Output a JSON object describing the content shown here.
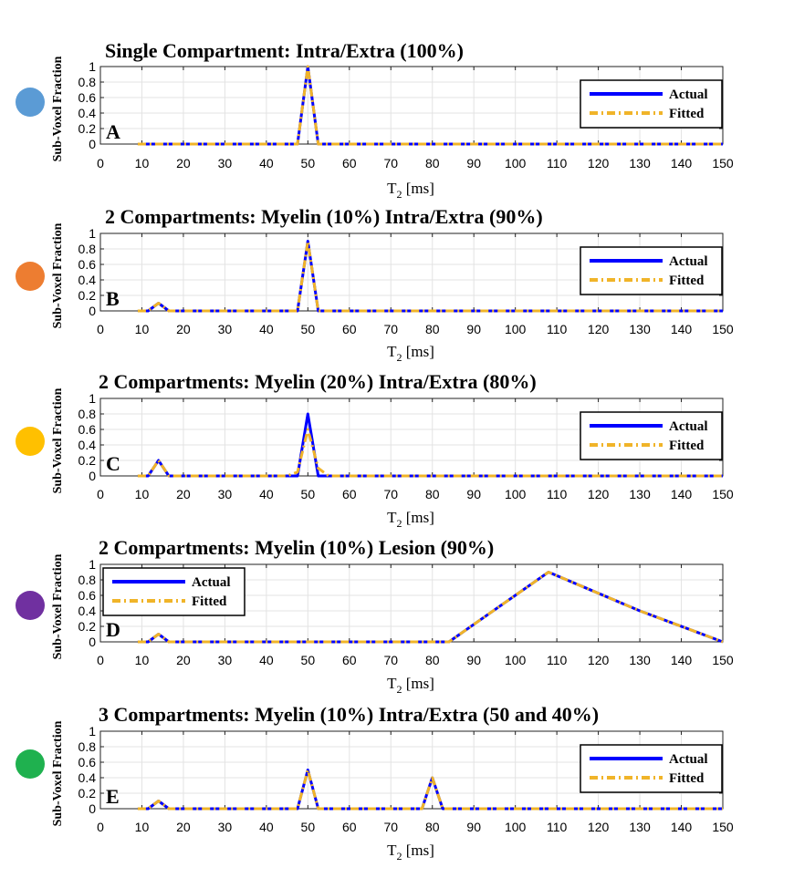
{
  "chart_data": [
    {
      "type": "line",
      "panel_label": "A",
      "title": "Single Compartment: Intra/Extra (100%)",
      "ylabel": "Sub-Voxel Fraction",
      "xlabel_main": "T",
      "xlabel_sub": "2",
      "xlabel_unit": " [ms]",
      "xlim": [
        0,
        150
      ],
      "ylim": [
        0,
        1
      ],
      "xticks": [
        0,
        10,
        20,
        30,
        40,
        50,
        60,
        70,
        80,
        90,
        100,
        110,
        120,
        130,
        140,
        150
      ],
      "yticks": [
        "0",
        "0.2",
        "0.4",
        "0.6",
        "0.8",
        "1"
      ],
      "legend_position": "right",
      "dot_color": "#5b9bd5",
      "series": [
        {
          "name": "Actual",
          "color": "#0000ff",
          "x": [
            9,
            47.5,
            50,
            52.5,
            150
          ],
          "y": [
            0,
            0,
            1.0,
            0,
            0
          ]
        },
        {
          "name": "Fitted",
          "color": "#f0b429",
          "x": [
            9,
            47.5,
            50,
            52.5,
            150
          ],
          "y": [
            0,
            0,
            1.0,
            0,
            0
          ]
        }
      ]
    },
    {
      "type": "line",
      "panel_label": "B",
      "title": "2 Compartments: Myelin (10%) Intra/Extra (90%)",
      "ylabel": "Sub-Voxel Fraction",
      "xlabel_main": "T",
      "xlabel_sub": "2",
      "xlabel_unit": " [ms]",
      "xlim": [
        0,
        150
      ],
      "ylim": [
        0,
        1
      ],
      "xticks": [
        0,
        10,
        20,
        30,
        40,
        50,
        60,
        70,
        80,
        90,
        100,
        110,
        120,
        130,
        140,
        150
      ],
      "yticks": [
        "0",
        "0.2",
        "0.4",
        "0.6",
        "0.8",
        "1"
      ],
      "legend_position": "right",
      "dot_color": "#ed7d31",
      "series": [
        {
          "name": "Actual",
          "color": "#0000ff",
          "x": [
            9,
            11.5,
            14,
            16.5,
            47.5,
            50,
            52.5,
            150
          ],
          "y": [
            0,
            0,
            0.1,
            0,
            0,
            0.9,
            0,
            0
          ]
        },
        {
          "name": "Fitted",
          "color": "#f0b429",
          "x": [
            9,
            11.5,
            14,
            16.5,
            47.5,
            50,
            52.5,
            150
          ],
          "y": [
            0,
            0,
            0.1,
            0,
            0,
            0.9,
            0,
            0
          ]
        }
      ]
    },
    {
      "type": "line",
      "panel_label": "C",
      "title": "2 Compartments: Myelin (20%) Intra/Extra (80%)",
      "ylabel": "Sub-Voxel Fraction",
      "xlabel_main": "T",
      "xlabel_sub": "2",
      "xlabel_unit": " [ms]",
      "xlim": [
        0,
        150
      ],
      "ylim": [
        0,
        1
      ],
      "xticks": [
        0,
        10,
        20,
        30,
        40,
        50,
        60,
        70,
        80,
        90,
        100,
        110,
        120,
        130,
        140,
        150
      ],
      "yticks": [
        "0",
        "0.2",
        "0.4",
        "0.6",
        "0.8",
        "1"
      ],
      "legend_position": "right",
      "dot_color": "#ffc000",
      "series": [
        {
          "name": "Actual",
          "color": "#0000ff",
          "x": [
            9,
            11.5,
            14,
            16.5,
            47.5,
            50,
            52.5,
            150
          ],
          "y": [
            0,
            0,
            0.2,
            0,
            0,
            0.8,
            0,
            0
          ]
        },
        {
          "name": "Fitted",
          "color": "#f0b429",
          "x": [
            9,
            11.5,
            14,
            16.5,
            45,
            47.5,
            50,
            52.5,
            55,
            150
          ],
          "y": [
            0,
            0,
            0.2,
            0,
            0,
            0.05,
            0.6,
            0.1,
            0,
            0
          ]
        }
      ]
    },
    {
      "type": "line",
      "panel_label": "D",
      "title": "2 Compartments: Myelin (10%) Lesion (90%)",
      "ylabel": "Sub-Voxel Fraction",
      "xlabel_main": "T",
      "xlabel_sub": "2",
      "xlabel_unit": " [ms]",
      "xlim": [
        0,
        150
      ],
      "ylim": [
        0,
        1
      ],
      "xticks": [
        0,
        10,
        20,
        30,
        40,
        50,
        60,
        70,
        80,
        90,
        100,
        110,
        120,
        130,
        140,
        150
      ],
      "yticks": [
        "0",
        "0.2",
        "0.4",
        "0.6",
        "0.8",
        "1"
      ],
      "legend_position": "left",
      "dot_color": "#7030a0",
      "series": [
        {
          "name": "Actual",
          "color": "#0000ff",
          "x": [
            9,
            11.5,
            14,
            16.5,
            84,
            108,
            130,
            150
          ],
          "y": [
            0,
            0,
            0.1,
            0,
            0,
            0.9,
            0.4,
            0
          ]
        },
        {
          "name": "Fitted",
          "color": "#f0b429",
          "x": [
            9,
            11.5,
            14,
            16.5,
            84,
            108,
            130,
            150
          ],
          "y": [
            0,
            0,
            0.1,
            0,
            0,
            0.9,
            0.4,
            0
          ]
        }
      ]
    },
    {
      "type": "line",
      "panel_label": "E",
      "title": "3 Compartments: Myelin (10%) Intra/Extra (50 and 40%)",
      "ylabel": "Sub-Voxel Fraction",
      "xlabel_main": "T",
      "xlabel_sub": "2",
      "xlabel_unit": " [ms]",
      "xlim": [
        0,
        150
      ],
      "ylim": [
        0,
        1
      ],
      "xticks": [
        0,
        10,
        20,
        30,
        40,
        50,
        60,
        70,
        80,
        90,
        100,
        110,
        120,
        130,
        140,
        150
      ],
      "yticks": [
        "0",
        "0.2",
        "0.4",
        "0.6",
        "0.8",
        "1"
      ],
      "legend_position": "right",
      "dot_color": "#1fb14f",
      "series": [
        {
          "name": "Actual",
          "color": "#0000ff",
          "x": [
            9,
            11.5,
            14,
            16.5,
            47.5,
            50,
            52.5,
            77.5,
            80,
            82.5,
            150
          ],
          "y": [
            0,
            0,
            0.1,
            0,
            0,
            0.5,
            0,
            0,
            0.4,
            0,
            0
          ]
        },
        {
          "name": "Fitted",
          "color": "#f0b429",
          "x": [
            9,
            11.5,
            14,
            16.5,
            47.5,
            50,
            52.5,
            77.5,
            80,
            82.5,
            150
          ],
          "y": [
            0,
            0,
            0.1,
            0,
            0,
            0.5,
            0,
            0,
            0.4,
            0,
            0
          ]
        }
      ]
    }
  ]
}
